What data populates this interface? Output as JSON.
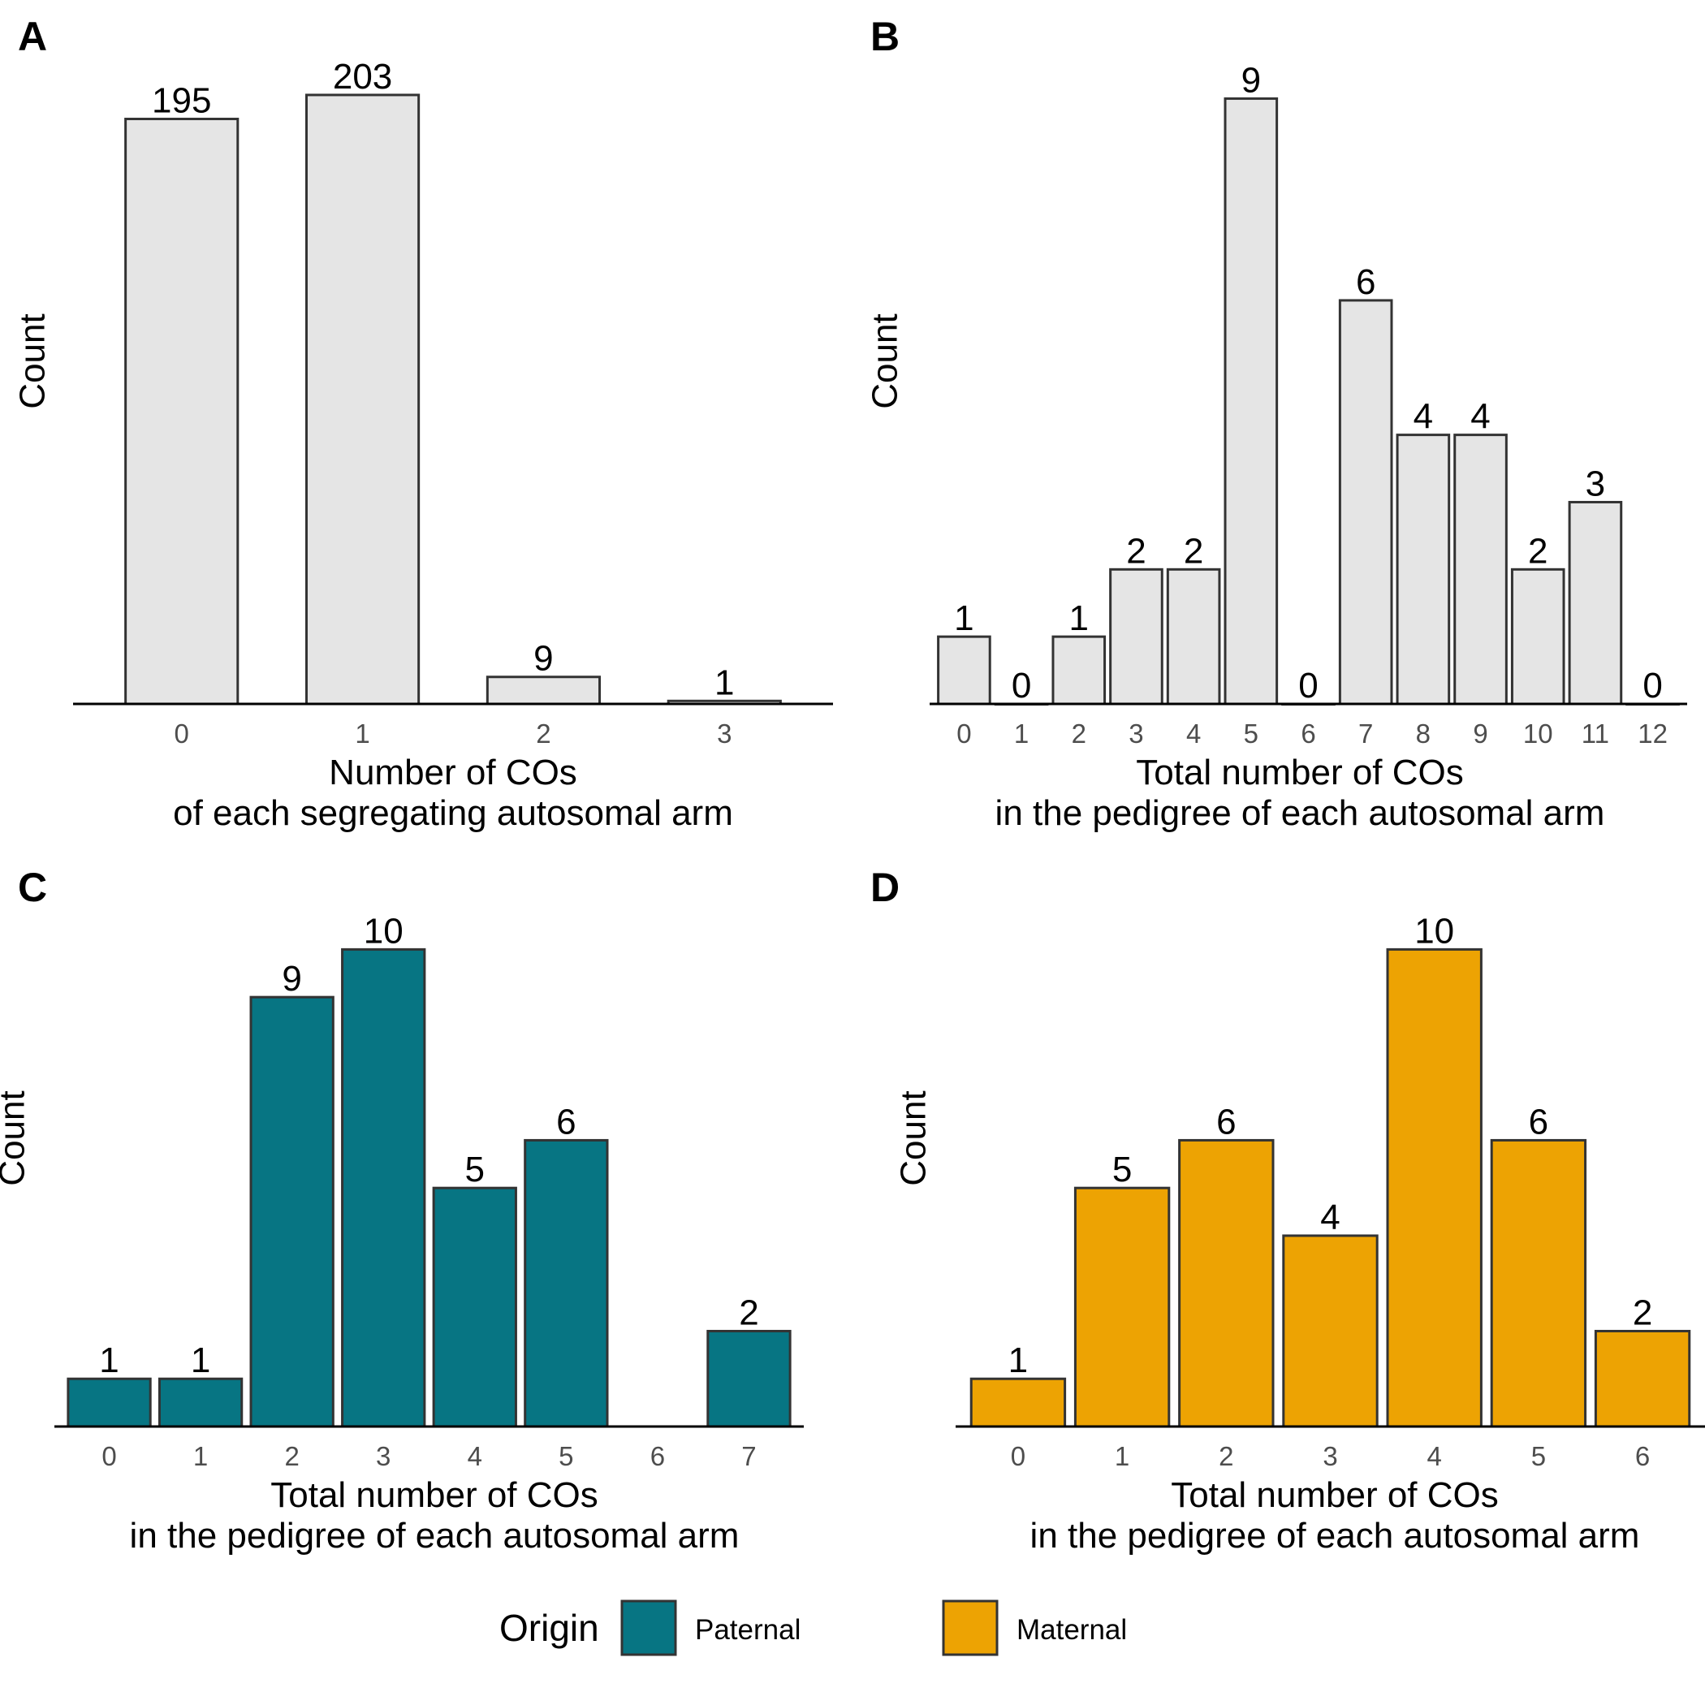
{
  "chart_data": [
    {
      "panel": "A",
      "type": "bar",
      "categories": [
        "0",
        "1",
        "2",
        "3"
      ],
      "values": [
        195,
        203,
        9,
        1
      ],
      "xlabel": [
        "Number of COs",
        "of each segregating autosomal arm"
      ],
      "ylabel": "Count",
      "ylim": [
        0,
        213
      ],
      "fill": "#e5e5e5",
      "grid": false
    },
    {
      "panel": "B",
      "type": "bar",
      "categories": [
        "0",
        "1",
        "2",
        "3",
        "4",
        "5",
        "6",
        "7",
        "8",
        "9",
        "10",
        "11",
        "12"
      ],
      "values": [
        1,
        0,
        1,
        2,
        2,
        9,
        0,
        6,
        4,
        4,
        2,
        3,
        0
      ],
      "xlabel": [
        "Total number of COs",
        "in the pedigree of each autosomal arm"
      ],
      "ylabel": "Count",
      "ylim": [
        0,
        9.5
      ],
      "fill": "#e5e5e5",
      "grid": false
    },
    {
      "panel": "C",
      "type": "bar",
      "categories": [
        "0",
        "1",
        "2",
        "3",
        "4",
        "5",
        "6",
        "7"
      ],
      "values": [
        1,
        1,
        9,
        10,
        5,
        6,
        null,
        2
      ],
      "xlabel": [
        "Total number of COs",
        "in the pedigree of each autosomal arm"
      ],
      "ylabel": "Count",
      "ylim": [
        0,
        10.5
      ],
      "series_name": "Paternal",
      "fill": "#077583",
      "grid": false
    },
    {
      "panel": "D",
      "type": "bar",
      "categories": [
        "0",
        "1",
        "2",
        "3",
        "4",
        "5",
        "6"
      ],
      "values": [
        1,
        5,
        6,
        4,
        10,
        6,
        2
      ],
      "xlabel": [
        "Total number of COs",
        "in the pedigree of each autosomal arm"
      ],
      "ylabel": "Count",
      "ylim": [
        0,
        10.5
      ],
      "series_name": "Maternal",
      "fill": "#eda303",
      "grid": false
    }
  ],
  "legend": {
    "title": "Origin",
    "placement": "bottom",
    "items": [
      {
        "label": "Paternal",
        "color": "#077583"
      },
      {
        "label": "Maternal",
        "color": "#eda303"
      }
    ]
  },
  "colors": {
    "outline": "#333333",
    "axis": "#000000",
    "tick_text": "#4d4d4d"
  }
}
